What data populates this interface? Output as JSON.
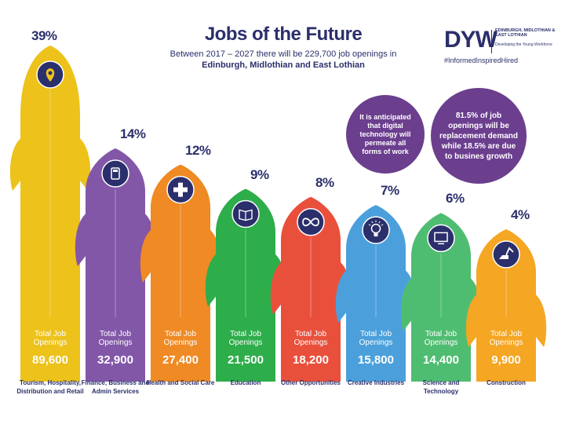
{
  "header": {
    "title": "Jobs of the Future",
    "subtitle_prefix": "Between 2017 – 2027 there will be 229,700 job openings in ",
    "subtitle_regions": "Edinburgh, Midlothian and East Lothian"
  },
  "logo": {
    "mark": "DYW",
    "org": "EDINBURGH, MIDLOTHIAN & EAST LOTHIAN",
    "tagline": "Developing the Young Workforce",
    "hashtag": "#InformedInspiredHired"
  },
  "callouts": {
    "digital": "It is anticipated that digital technology will permeate all forms of work",
    "replacement": "81.5% of job openings will be replacement demand while 18.5% are due to busines growth"
  },
  "chart_data": {
    "type": "bar",
    "title": "Jobs of the Future",
    "total_label": "Total Job Openings",
    "categories": [
      "Tourism, Hospitality, Distribution and Retail",
      "Finance, Business and Admin Services",
      "Health and Social Care",
      "Education",
      "Other Opportunities",
      "Creative Industries",
      "Science and Technology",
      "Construction"
    ],
    "percent_labels": [
      "39%",
      "14%",
      "12%",
      "9%",
      "8%",
      "7%",
      "6%",
      "4%"
    ],
    "percent_values": [
      39,
      14,
      12,
      9,
      8,
      7,
      6,
      4
    ],
    "values": [
      89600,
      32900,
      27400,
      21500,
      18200,
      15800,
      14400,
      9900
    ],
    "value_labels": [
      "89,600",
      "32,900",
      "27,400",
      "21,500",
      "18,200",
      "15,800",
      "14,400",
      "9,900"
    ],
    "colors": [
      "#edc21b",
      "#8257a8",
      "#ef8a24",
      "#2ead4b",
      "#e9503c",
      "#4ba0dc",
      "#4fbd71",
      "#f5a623"
    ],
    "icons": [
      "map-pin-icon",
      "calculator-icon",
      "medical-cross-icon",
      "book-icon",
      "infinity-icon",
      "lightbulb-icon",
      "computer-icon",
      "excavator-icon"
    ]
  }
}
